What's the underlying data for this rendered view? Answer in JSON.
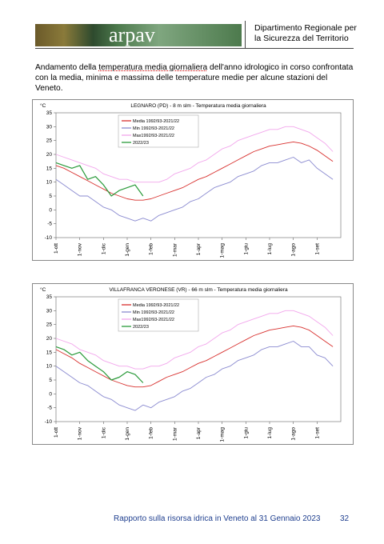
{
  "header": {
    "logo_text": "arpav",
    "department": [
      "Dipartimento Regionale per",
      "la Sicurezza del Territorio"
    ]
  },
  "intro": {
    "before": "Andamento della ",
    "underlined": "temperatura media giornaliera",
    "after": " dell'anno idrologico in corso confrontata con la media, minima e massima delle temperature medie per alcune stazioni del Veneto."
  },
  "chart_data": [
    {
      "type": "line",
      "title": "LEGNARO (PD) - 8 m slm - Temperatura media giornaliera",
      "y_label": "°C",
      "categories": [
        "1-ott",
        null,
        null,
        "1-nov",
        null,
        null,
        "1-dic",
        null,
        null,
        "1-gen",
        null,
        null,
        "1-feb",
        null,
        null,
        "1-mar",
        null,
        null,
        "1-apr",
        null,
        null,
        "1-mag",
        null,
        null,
        "1-giu",
        null,
        null,
        "1-lug",
        null,
        null,
        "1-ago",
        null,
        null,
        "1-set",
        null,
        null
      ],
      "ylim": [
        -10,
        35
      ],
      "yticks": [
        -10,
        -5,
        0,
        5,
        10,
        15,
        20,
        25,
        30,
        35
      ],
      "legend": "upper left",
      "grid": false,
      "series": [
        {
          "name": "Media 1992/93-2021/22",
          "color": "#d8302e",
          "values": [
            16,
            15,
            13.5,
            12,
            10.5,
            9,
            7.5,
            6,
            5,
            4,
            3.5,
            3.5,
            4,
            5,
            6,
            7,
            8,
            9.5,
            11,
            12,
            13.5,
            15,
            16.5,
            18,
            19.5,
            21,
            22,
            23,
            23.5,
            24,
            24.5,
            24,
            23,
            21.5,
            19.5,
            17.5
          ]
        },
        {
          "name": "Min 1992/93-2021/22",
          "color": "#8a8ad0",
          "values": [
            11,
            9,
            7,
            5,
            5,
            3,
            1,
            0,
            -2,
            -3,
            -4,
            -3,
            -4,
            -2,
            -1,
            0,
            1,
            3,
            4,
            6,
            8,
            9,
            10,
            12,
            13,
            14,
            16,
            17,
            17,
            18,
            19,
            17,
            18,
            15,
            13,
            11
          ]
        },
        {
          "name": "Max1992/93-2021/22",
          "color": "#f2a6ec",
          "values": [
            20,
            19,
            18,
            17,
            16,
            15,
            13,
            12,
            11,
            11,
            10,
            10,
            10,
            10,
            11,
            13,
            14,
            15,
            17,
            18,
            20,
            22,
            23,
            25,
            26,
            27,
            28,
            29,
            29,
            30,
            30,
            29,
            28,
            26,
            24,
            21
          ]
        },
        {
          "name": "2022/23",
          "color": "#2a9a3a",
          "values": [
            17,
            16,
            15,
            16,
            11,
            12,
            9,
            5,
            7,
            8,
            9,
            5,
            null,
            null,
            null,
            null,
            null,
            null,
            null,
            null,
            null,
            null,
            null,
            null,
            null,
            null,
            null,
            null,
            null,
            null,
            null,
            null,
            null,
            null,
            null,
            null
          ]
        }
      ]
    },
    {
      "type": "line",
      "title": "VILLAFRANCA VERONESE (VR) - 66 m slm - Temperatura media giornaliera",
      "y_label": "°C",
      "categories": [
        "1-ott",
        null,
        null,
        "1-nov",
        null,
        null,
        "1-dic",
        null,
        null,
        "1-gen",
        null,
        null,
        "1-feb",
        null,
        null,
        "1-mar",
        null,
        null,
        "1-apr",
        null,
        null,
        "1-mag",
        null,
        null,
        "1-giu",
        null,
        null,
        "1-lug",
        null,
        null,
        "1-ago",
        null,
        null,
        "1-set",
        null,
        null
      ],
      "ylim": [
        -10,
        35
      ],
      "yticks": [
        -10,
        -5,
        0,
        5,
        10,
        15,
        20,
        25,
        30,
        35
      ],
      "legend": "upper left",
      "grid": false,
      "series": [
        {
          "name": "Media 1992/93-2021/22",
          "color": "#d8302e",
          "values": [
            16,
            14.5,
            13,
            11,
            9.5,
            8,
            6.5,
            5,
            4,
            3,
            2.5,
            2.5,
            3,
            4.5,
            6,
            7,
            8,
            9.5,
            11,
            12,
            13.5,
            15,
            16.5,
            18,
            19.5,
            21,
            22,
            23,
            23.5,
            24,
            24.5,
            24,
            23,
            21,
            19,
            17
          ]
        },
        {
          "name": "Min 1992/93-2021/22",
          "color": "#8a8ad0",
          "values": [
            10,
            8,
            6,
            4,
            3,
            1,
            -1,
            -2,
            -4,
            -5,
            -6,
            -4,
            -5,
            -3,
            -2,
            -1,
            1,
            2,
            4,
            6,
            7,
            9,
            10,
            12,
            13,
            14,
            16,
            17,
            17,
            18,
            19,
            17,
            17,
            14,
            13,
            10
          ]
        },
        {
          "name": "Max1992/93-2021/22",
          "color": "#f2a6ec",
          "values": [
            20,
            19,
            18,
            16,
            15,
            14,
            12,
            11,
            10,
            10,
            9,
            9,
            10,
            10,
            11,
            13,
            14,
            15,
            17,
            18,
            20,
            22,
            23,
            25,
            26,
            27,
            28,
            29,
            29,
            30,
            30,
            29,
            28,
            26,
            24,
            21
          ]
        },
        {
          "name": "2022/23",
          "color": "#2a9a3a",
          "values": [
            17,
            16,
            14,
            15,
            12,
            10,
            8,
            5,
            6,
            8,
            7,
            4,
            null,
            null,
            null,
            null,
            null,
            null,
            null,
            null,
            null,
            null,
            null,
            null,
            null,
            null,
            null,
            null,
            null,
            null,
            null,
            null,
            null,
            null,
            null,
            null
          ]
        }
      ]
    }
  ],
  "footer": {
    "text": "Rapporto sulla risorsa idrica in Veneto al 31 Gennaio 2023",
    "page": "32"
  }
}
